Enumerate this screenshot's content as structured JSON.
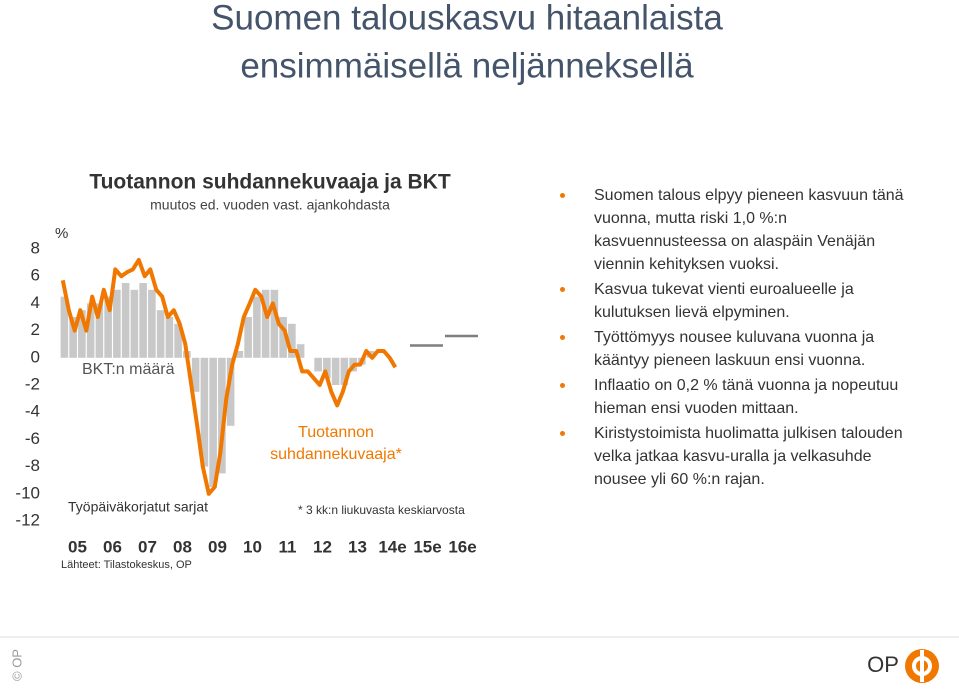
{
  "title_lines": [
    "Suomen talouskasvu hitaanlaista",
    "ensimmäisellä neljänneksellä"
  ],
  "chart_data": {
    "type": "bar-line",
    "title": "Tuotannon suhdannekuvaaja ja BKT",
    "subtitle": "muutos ed. vuoden vast. ajankohdasta",
    "y_unit": "%",
    "annotations": [
      "Työpäiväkorjatut sarjat",
      "* 3 kk:n liukuvasta keskiarvosta"
    ],
    "source": "Lähteet: Tilastokeskus, OP",
    "xlim": [
      2005,
      2017
    ],
    "xticks": [
      {
        "value": 2005,
        "label": "05"
      },
      {
        "value": 2006,
        "label": "06"
      },
      {
        "value": 2007,
        "label": "07"
      },
      {
        "value": 2008,
        "label": "08"
      },
      {
        "value": 2009,
        "label": "09"
      },
      {
        "value": 2010,
        "label": "10"
      },
      {
        "value": 2011,
        "label": "11"
      },
      {
        "value": 2012,
        "label": "12"
      },
      {
        "value": 2013,
        "label": "13"
      },
      {
        "value": 2014,
        "label": "14e"
      },
      {
        "value": 2015,
        "label": "15e"
      },
      {
        "value": 2016,
        "label": "16e"
      }
    ],
    "ylim": [
      -12,
      8
    ],
    "yticks": [
      8,
      6,
      4,
      2,
      0,
      -2,
      -4,
      -6,
      -8,
      -10,
      -12
    ],
    "series": [
      {
        "name": "BKT:n määrä",
        "kind": "bar",
        "color": "#c8c8c8",
        "x": [
          2005.125,
          2005.375,
          2005.625,
          2005.875,
          2006.125,
          2006.375,
          2006.625,
          2006.875,
          2007.125,
          2007.375,
          2007.625,
          2007.875,
          2008.125,
          2008.375,
          2008.625,
          2008.875,
          2009.125,
          2009.375,
          2009.625,
          2009.875,
          2010.125,
          2010.375,
          2010.625,
          2010.875,
          2011.125,
          2011.375,
          2011.625,
          2011.875,
          2012.125,
          2012.375,
          2012.625,
          2012.875,
          2013.125,
          2013.375,
          2013.625,
          2013.875
        ],
        "values": [
          4.5,
          3.0,
          3.5,
          4.0,
          4.0,
          4.5,
          5.0,
          5.5,
          5.0,
          5.5,
          5.0,
          3.5,
          3.0,
          2.5,
          0.5,
          -2.5,
          -8.0,
          -9.5,
          -8.5,
          -5.0,
          0.5,
          3.0,
          4.5,
          5.0,
          5.0,
          3.0,
          2.5,
          1.0,
          0.0,
          -1.0,
          -1.5,
          -2.0,
          -2.0,
          -1.0,
          -0.5,
          0.5
        ]
      },
      {
        "name": "Tuotannon suhdannekuvaaja*",
        "kind": "line",
        "color": "#f07800",
        "x": [
          2005.08,
          2005.25,
          2005.42,
          2005.58,
          2005.75,
          2005.92,
          2006.08,
          2006.25,
          2006.42,
          2006.58,
          2006.75,
          2006.92,
          2007.08,
          2007.25,
          2007.42,
          2007.58,
          2007.75,
          2007.92,
          2008.08,
          2008.25,
          2008.42,
          2008.58,
          2008.75,
          2008.92,
          2009.08,
          2009.25,
          2009.42,
          2009.58,
          2009.75,
          2009.92,
          2010.08,
          2010.25,
          2010.42,
          2010.58,
          2010.75,
          2010.92,
          2011.08,
          2011.25,
          2011.42,
          2011.58,
          2011.75,
          2011.92,
          2012.08,
          2012.25,
          2012.42,
          2012.58,
          2012.75,
          2012.92,
          2013.08,
          2013.25,
          2013.42,
          2013.58,
          2013.75,
          2013.92,
          2014.08,
          2014.25,
          2014.42,
          2014.58
        ],
        "values": [
          5.7,
          3.5,
          2.0,
          3.5,
          2.0,
          4.5,
          3.0,
          5.0,
          3.5,
          6.5,
          6.0,
          6.3,
          6.5,
          7.2,
          6.0,
          6.5,
          5.0,
          4.5,
          3.0,
          3.5,
          2.5,
          1.0,
          -2.0,
          -5.0,
          -8.0,
          -10.0,
          -9.5,
          -7.0,
          -3.0,
          -0.5,
          1.0,
          3.0,
          4.0,
          5.0,
          4.5,
          3.0,
          4.0,
          2.5,
          2.0,
          0.5,
          0.5,
          -1.0,
          -1.0,
          -1.5,
          -2.0,
          -1.0,
          -2.5,
          -3.5,
          -2.5,
          -1.0,
          -0.5,
          -0.5,
          0.5,
          0.0,
          0.5,
          0.5,
          0.0,
          -0.7
        ]
      },
      {
        "kind": "forecast",
        "color": "#7f7f7f",
        "x": [
          2015,
          2016
        ],
        "values": [
          0.9,
          1.6
        ]
      }
    ]
  },
  "bullets": [
    "Suomen talous elpyy pieneen kasvuun tänä vuonna, mutta riski 1,0 %:n kasvuennusteessa on alaspäin Venäjän viennin kehityksen vuoksi.",
    "Kasvua tukevat vienti euroalueelle ja kulutuksen lievä elpyminen.",
    "Työttömyys nousee kuluvana vuonna ja kääntyy pieneen laskuun ensi vuonna.",
    "Inflaatio on 0,2 % tänä vuonna ja nopeutuu hieman ensi vuoden mittaan.",
    "Kiristystoimista huolimatta julkisen talouden velka jatkaa kasvu-uralla ja velkasuhde nousee yli 60 %:n rajan."
  ],
  "footer": {
    "copyright": "© OP",
    "logo": "OP"
  }
}
